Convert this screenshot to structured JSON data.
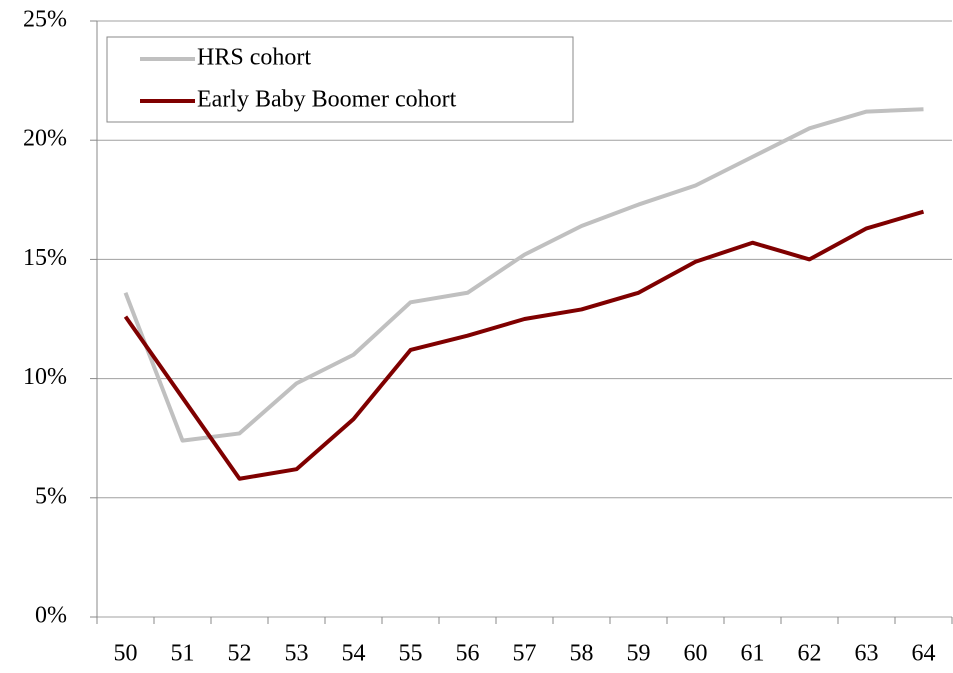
{
  "chart_data": {
    "type": "line",
    "categories": [
      "50",
      "51",
      "52",
      "53",
      "54",
      "55",
      "56",
      "57",
      "58",
      "59",
      "60",
      "61",
      "62",
      "63",
      "64"
    ],
    "series": [
      {
        "name": "HRS cohort",
        "color": "#c0c0c0",
        "values": [
          13.6,
          7.4,
          7.7,
          9.8,
          11.0,
          13.2,
          13.6,
          15.2,
          16.4,
          17.3,
          18.1,
          19.3,
          20.5,
          21.2,
          21.3
        ]
      },
      {
        "name": "Early Baby Boomer cohort",
        "color": "#7f0000",
        "values": [
          12.6,
          9.2,
          5.8,
          6.2,
          8.3,
          11.2,
          11.8,
          12.5,
          12.9,
          13.6,
          14.9,
          15.7,
          15.0,
          16.3,
          17.0
        ]
      }
    ],
    "ylim": [
      0,
      25
    ],
    "yticks": [
      {
        "value": 0,
        "label": "0%"
      },
      {
        "value": 5,
        "label": "5%"
      },
      {
        "value": 10,
        "label": "10%"
      },
      {
        "value": 15,
        "label": "15%"
      },
      {
        "value": 20,
        "label": "20%"
      },
      {
        "value": 25,
        "label": "25%"
      }
    ],
    "grid": true,
    "legend": "upper left"
  }
}
